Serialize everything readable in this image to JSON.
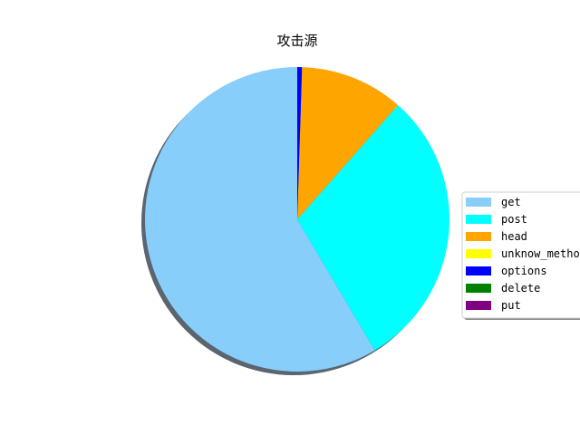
{
  "chart_data": {
    "type": "pie",
    "title": "攻击源",
    "legend_position": "right",
    "shadow": true,
    "slices": [
      {
        "label": "get",
        "value": 58.5,
        "color": "#87CEFA"
      },
      {
        "label": "post",
        "value": 30.0,
        "color": "#00FFFF"
      },
      {
        "label": "head",
        "value": 11.0,
        "color": "#FFA500"
      },
      {
        "label": "unknow_method",
        "value": 0.0,
        "color": "#FFFF00"
      },
      {
        "label": "options",
        "value": 0.5,
        "color": "#0000FF"
      },
      {
        "label": "delete",
        "value": 0.0,
        "color": "#008000"
      },
      {
        "label": "put",
        "value": 0.0,
        "color": "#800080"
      }
    ]
  }
}
